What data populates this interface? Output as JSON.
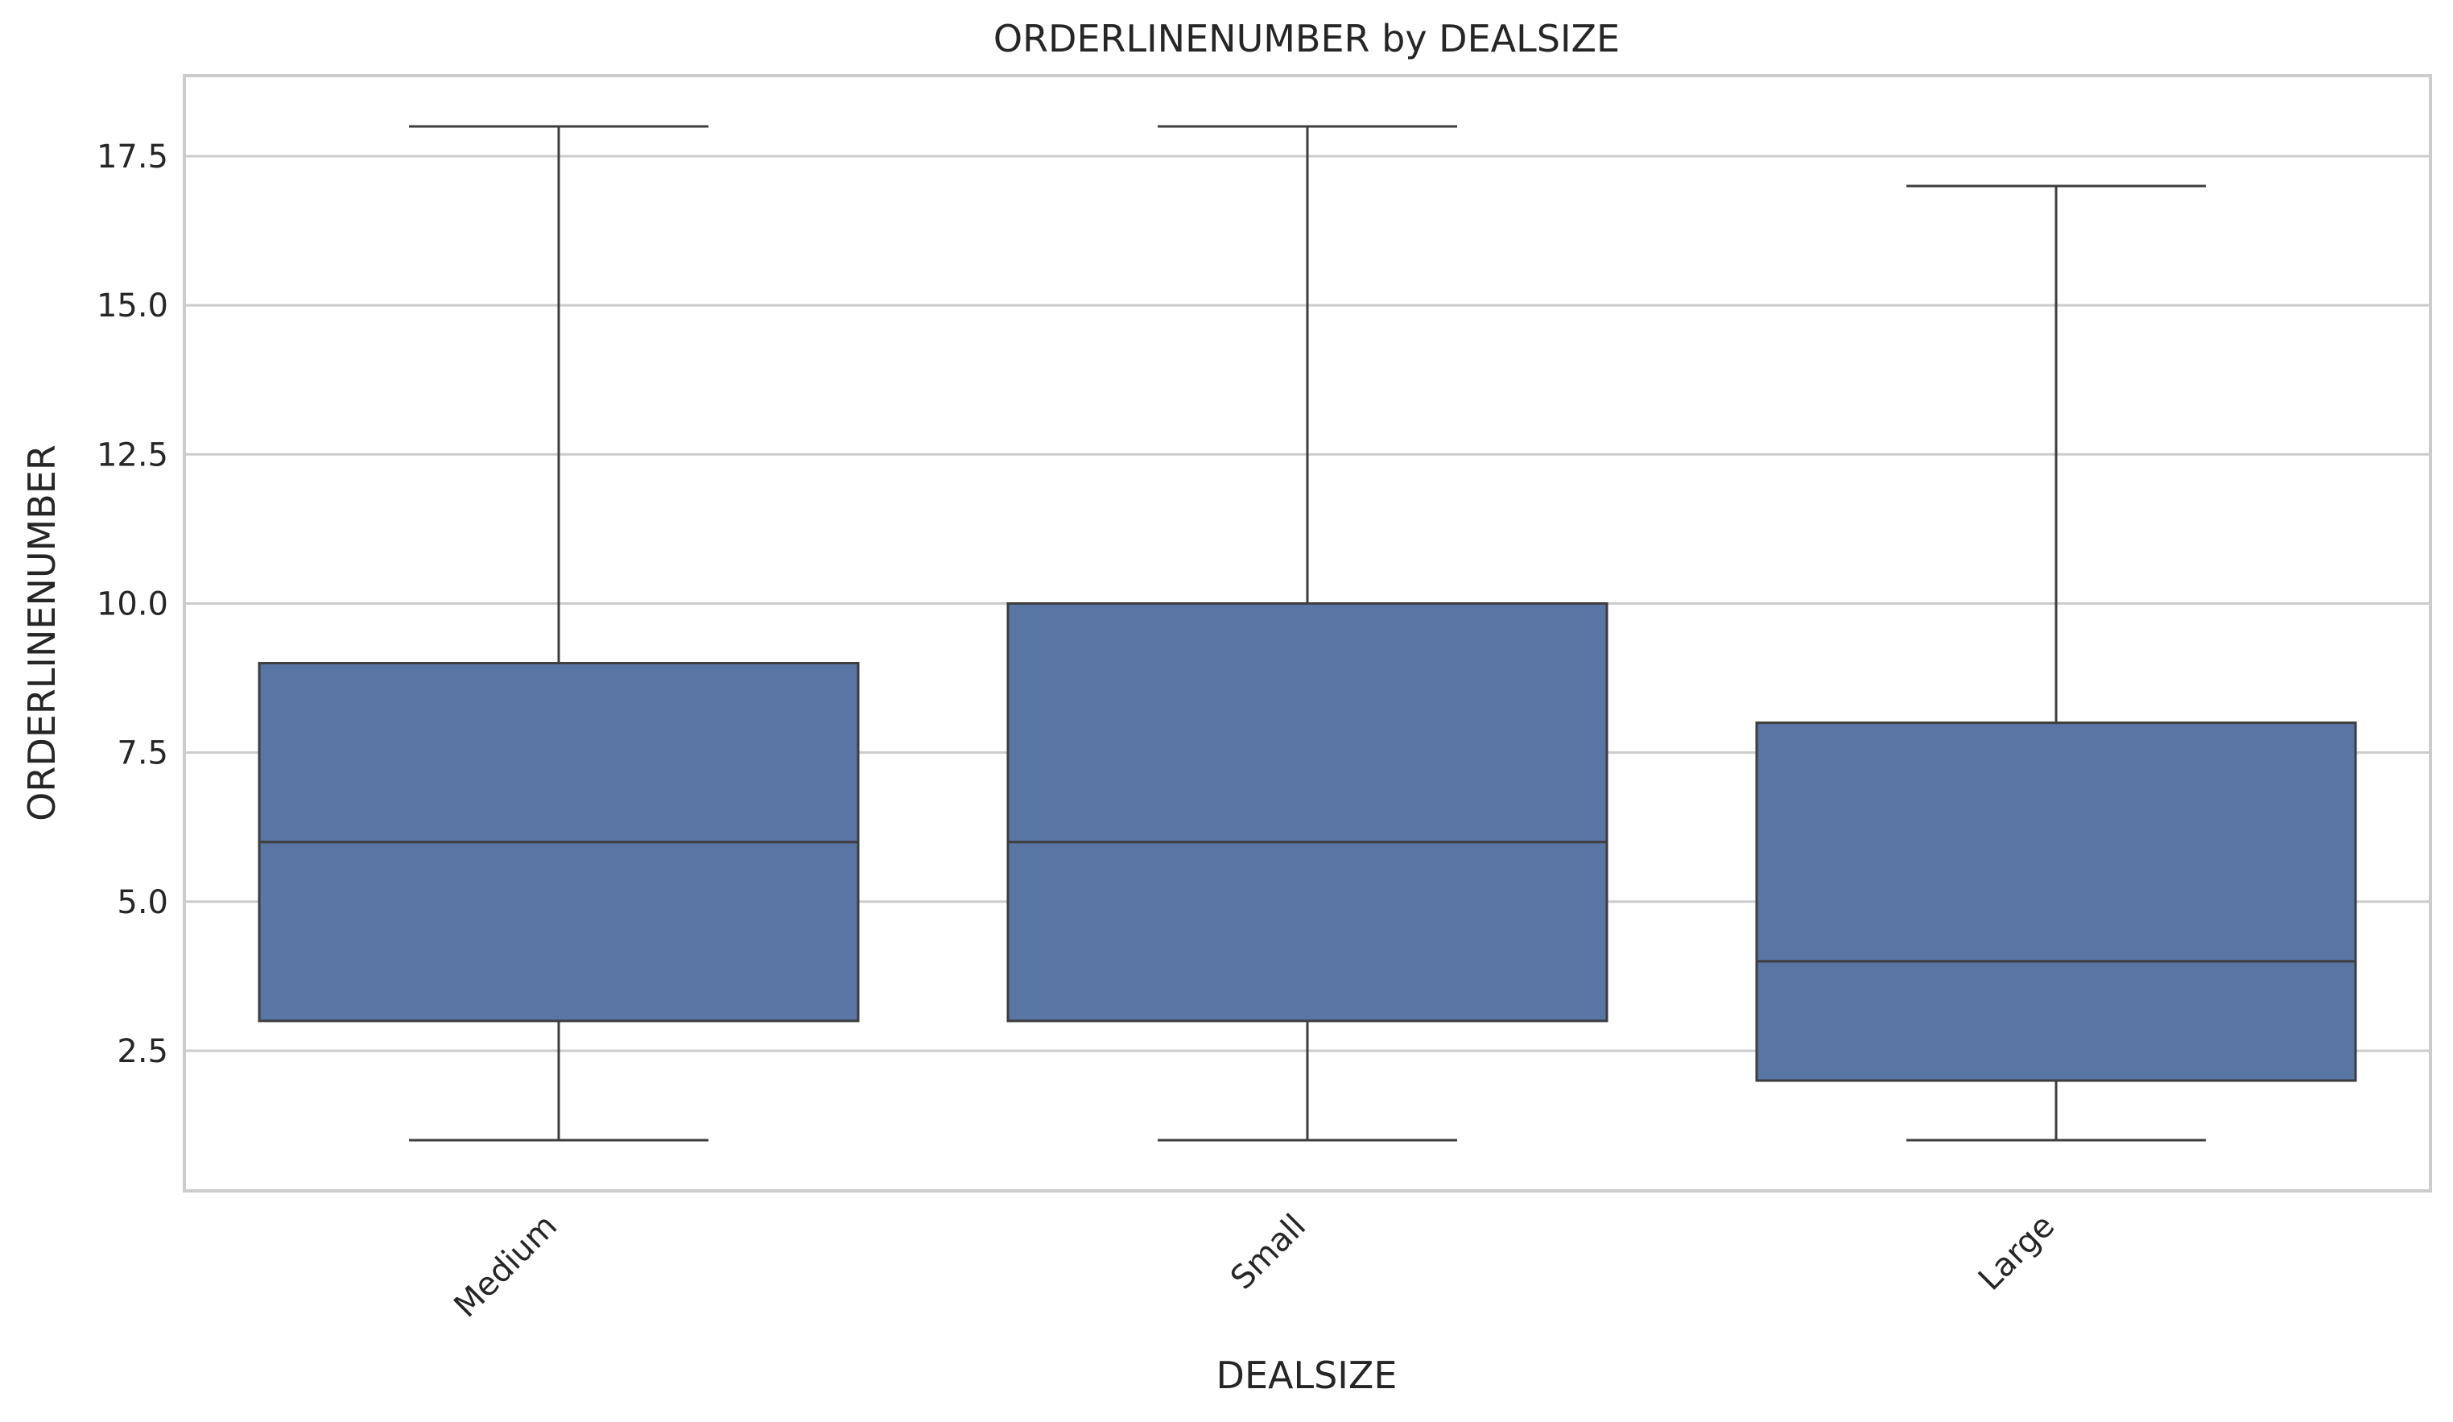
{
  "chart_data": {
    "type": "box",
    "title": "ORDERLINENUMBER by DEALSIZE",
    "xlabel": "DEALSIZE",
    "ylabel": "ORDERLINENUMBER",
    "categories": [
      "Medium",
      "Small",
      "Large"
    ],
    "boxes": [
      {
        "category": "Medium",
        "min": 1,
        "q1": 3,
        "median": 6,
        "q3": 9,
        "max": 18
      },
      {
        "category": "Small",
        "min": 1,
        "q1": 3,
        "median": 6,
        "q3": 10,
        "max": 18
      },
      {
        "category": "Large",
        "min": 1,
        "q1": 2,
        "median": 4,
        "q3": 8,
        "max": 17
      }
    ],
    "yticks": [
      2.5,
      5.0,
      7.5,
      10.0,
      12.5,
      15.0,
      17.5
    ],
    "ytick_labels": [
      "2.5",
      "5.0",
      "7.5",
      "10.0",
      "12.5",
      "15.0",
      "17.5"
    ],
    "ylim": [
      0.15,
      18.85
    ],
    "grid": "horizontal",
    "box_color": "#5975a4",
    "line_color": "#3d3d3d",
    "grid_color": "#cccccc"
  }
}
